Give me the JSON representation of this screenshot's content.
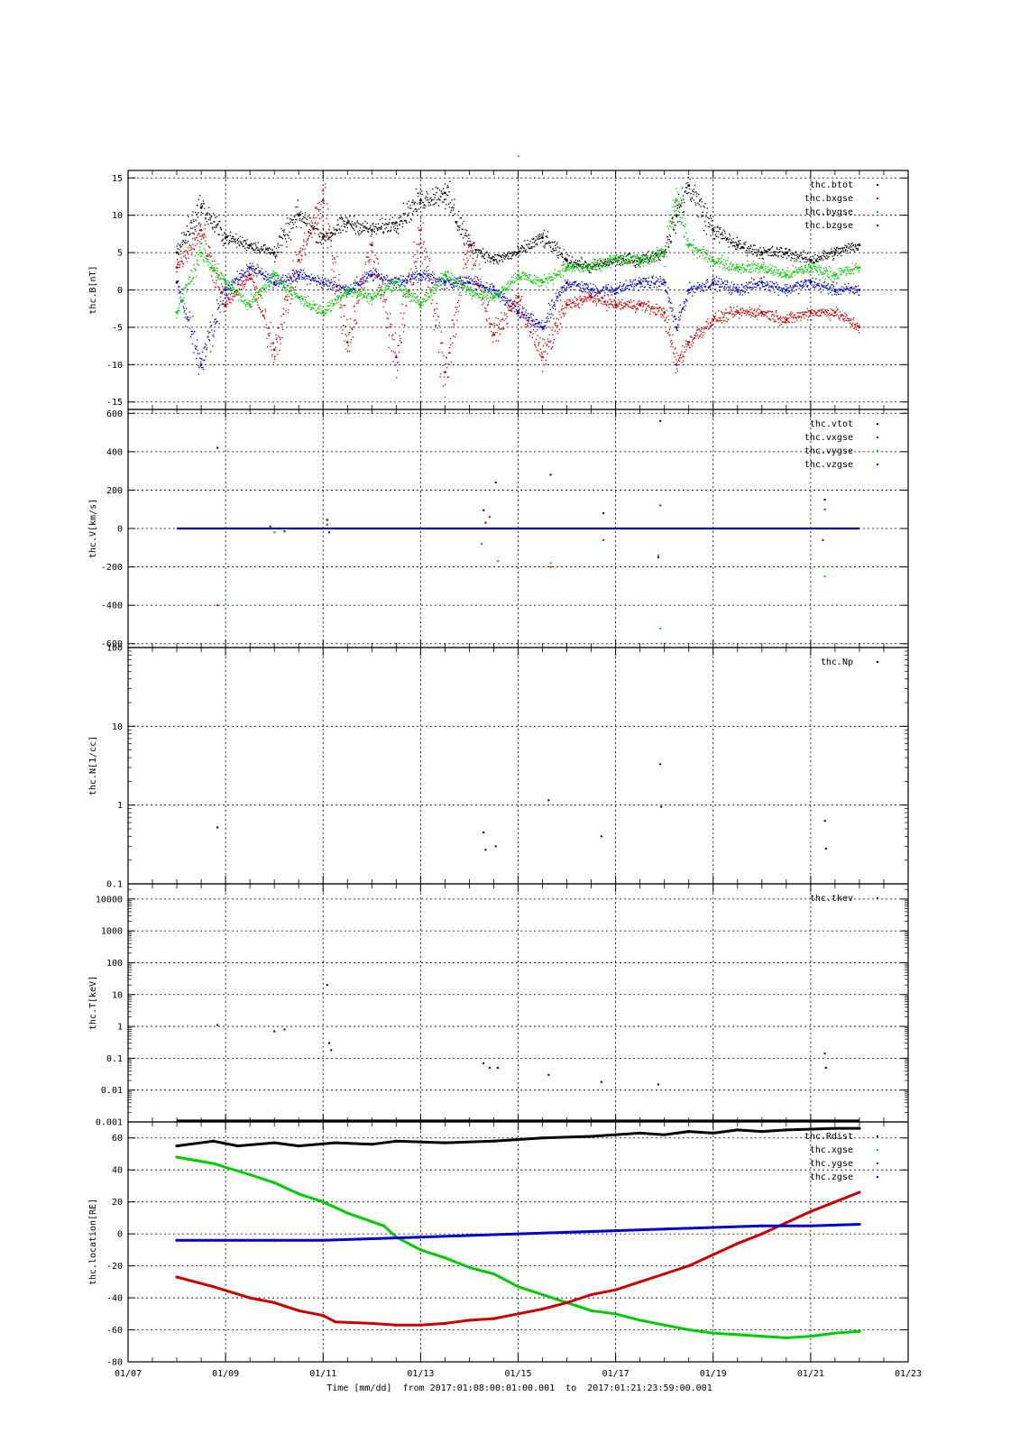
{
  "figure": {
    "title": "-",
    "xlabel": "Time [mm/dd]  from 2017:01:08:00:01:00.001  to  2017:01:21:23:59:00.001",
    "time_axis": {
      "range": [
        "2017-01-07",
        "2017-01-23"
      ],
      "tick_labels": [
        "01/07",
        "01/09",
        "01/11",
        "01/13",
        "01/15",
        "01/17",
        "01/19",
        "01/21",
        "01/23"
      ]
    }
  },
  "colors": {
    "black": "#000000",
    "red": "#cc0000",
    "green": "#00cc00",
    "blue": "#0000cc",
    "grid": "#000000"
  },
  "chart_data": [
    {
      "type": "scatter",
      "ylabel": "thc.B[nT]",
      "ylim": [
        -16,
        16
      ],
      "yscale": "linear",
      "yticks": [
        -15,
        -10,
        -5,
        0,
        5,
        10,
        15
      ],
      "ytick_labels": [
        "-15",
        "-10",
        "-5",
        "0",
        "5",
        "10",
        "15"
      ],
      "legend": "top-right",
      "grid": true,
      "series": [
        {
          "name": "thc.btot",
          "color": "black",
          "x": [
            "2017-01-08 00:00",
            "2017-01-08 12:00",
            "2017-01-09 00:00",
            "2017-01-09 12:00",
            "2017-01-10 00:00",
            "2017-01-10 12:00",
            "2017-01-11 00:00",
            "2017-01-11 12:00",
            "2017-01-12 00:00",
            "2017-01-12 12:00",
            "2017-01-13 00:00",
            "2017-01-13 12:00",
            "2017-01-14 00:00",
            "2017-01-14 12:00",
            "2017-01-15 00:00",
            "2017-01-15 12:00",
            "2017-01-16 00:00",
            "2017-01-16 12:00",
            "2017-01-17 00:00",
            "2017-01-17 12:00",
            "2017-01-18 00:00",
            "2017-01-18 06:00",
            "2017-01-18 12:00",
            "2017-01-19 00:00",
            "2017-01-19 12:00",
            "2017-01-20 00:00",
            "2017-01-20 12:00",
            "2017-01-21 00:00",
            "2017-01-21 12:00",
            "2017-01-22 00:00"
          ],
          "y": [
            5,
            11,
            7,
            6,
            5,
            10,
            7,
            9,
            8,
            9,
            12,
            13,
            6,
            4,
            5,
            7,
            4,
            3,
            4,
            4,
            5,
            10,
            14,
            8,
            6,
            5,
            5,
            4,
            5,
            6
          ]
        },
        {
          "name": "thc.bxgse",
          "color": "red",
          "x": [
            "2017-01-08 00:00",
            "2017-01-08 12:00",
            "2017-01-09 00:00",
            "2017-01-09 12:00",
            "2017-01-10 00:00",
            "2017-01-10 12:00",
            "2017-01-11 00:00",
            "2017-01-11 12:00",
            "2017-01-12 00:00",
            "2017-01-12 12:00",
            "2017-01-13 00:00",
            "2017-01-13 12:00",
            "2017-01-14 00:00",
            "2017-01-14 12:00",
            "2017-01-15 00:00",
            "2017-01-15 12:00",
            "2017-01-16 00:00",
            "2017-01-16 12:00",
            "2017-01-17 00:00",
            "2017-01-17 12:00",
            "2017-01-18 00:00",
            "2017-01-18 06:00",
            "2017-01-18 12:00",
            "2017-01-19 00:00",
            "2017-01-19 12:00",
            "2017-01-20 00:00",
            "2017-01-20 12:00",
            "2017-01-21 00:00",
            "2017-01-21 12:00",
            "2017-01-22 00:00"
          ],
          "y": [
            3,
            8,
            -2,
            2,
            -8,
            4,
            12,
            -7,
            6,
            -9,
            8,
            -11,
            6,
            -6,
            -1,
            -9,
            -2,
            -1,
            -2,
            -2,
            -3,
            -10,
            -7,
            -4,
            -3,
            -3,
            -4,
            -3,
            -3,
            -5
          ]
        },
        {
          "name": "thc.bygse",
          "color": "green",
          "x": [
            "2017-01-08 00:00",
            "2017-01-08 12:00",
            "2017-01-09 00:00",
            "2017-01-09 12:00",
            "2017-01-10 00:00",
            "2017-01-10 12:00",
            "2017-01-11 00:00",
            "2017-01-11 12:00",
            "2017-01-12 00:00",
            "2017-01-12 12:00",
            "2017-01-13 00:00",
            "2017-01-13 12:00",
            "2017-01-14 00:00",
            "2017-01-14 12:00",
            "2017-01-15 00:00",
            "2017-01-15 12:00",
            "2017-01-16 00:00",
            "2017-01-16 12:00",
            "2017-01-17 00:00",
            "2017-01-17 12:00",
            "2017-01-18 00:00",
            "2017-01-18 06:00",
            "2017-01-18 12:00",
            "2017-01-19 00:00",
            "2017-01-19 12:00",
            "2017-01-20 00:00",
            "2017-01-20 12:00",
            "2017-01-21 00:00",
            "2017-01-21 12:00",
            "2017-01-22 00:00"
          ],
          "y": [
            -3,
            5,
            1,
            -2,
            2,
            -1,
            -3,
            0,
            -1,
            1,
            -2,
            2,
            0,
            -1,
            2,
            1,
            3,
            3,
            4,
            4,
            5,
            12,
            6,
            4,
            3,
            3,
            2,
            3,
            2,
            3
          ]
        },
        {
          "name": "thc.bzgse",
          "color": "blue",
          "x": [
            "2017-01-08 00:00",
            "2017-01-08 12:00",
            "2017-01-09 00:00",
            "2017-01-09 12:00",
            "2017-01-10 00:00",
            "2017-01-10 12:00",
            "2017-01-11 00:00",
            "2017-01-11 12:00",
            "2017-01-12 00:00",
            "2017-01-12 12:00",
            "2017-01-13 00:00",
            "2017-01-13 12:00",
            "2017-01-14 00:00",
            "2017-01-14 12:00",
            "2017-01-15 00:00",
            "2017-01-15 12:00",
            "2017-01-16 00:00",
            "2017-01-16 12:00",
            "2017-01-17 00:00",
            "2017-01-17 12:00",
            "2017-01-18 00:00",
            "2017-01-18 06:00",
            "2017-01-18 12:00",
            "2017-01-19 00:00",
            "2017-01-19 12:00",
            "2017-01-20 00:00",
            "2017-01-20 12:00",
            "2017-01-21 00:00",
            "2017-01-21 12:00",
            "2017-01-22 00:00"
          ],
          "y": [
            1,
            -10,
            0,
            3,
            1,
            2,
            1,
            0,
            2,
            1,
            2,
            1,
            1,
            0,
            -3,
            -5,
            1,
            0,
            0,
            1,
            1,
            -5,
            0,
            1,
            0,
            1,
            0,
            1,
            0,
            0
          ]
        }
      ]
    },
    {
      "type": "scatter",
      "ylabel": "thc.V[km/s]",
      "ylim": [
        -620,
        620
      ],
      "yscale": "linear",
      "yticks": [
        -600,
        -400,
        -200,
        0,
        200,
        400,
        600
      ],
      "ytick_labels": [
        "-600",
        "-400",
        "-200",
        "0",
        "200",
        "400",
        "600"
      ],
      "legend": "top-right",
      "grid": true,
      "series": [
        {
          "name": "thc.vtot",
          "color": "black",
          "x": [
            "2017-01-08 20:00",
            "2017-01-11 02:00",
            "2017-01-14 07:00",
            "2017-01-14 13:00",
            "2017-01-15 16:00",
            "2017-01-16 18:00",
            "2017-01-17 22:00",
            "2017-01-21 07:00"
          ],
          "y": [
            420,
            45,
            95,
            240,
            280,
            80,
            560,
            150
          ]
        },
        {
          "name": "thc.vxgse",
          "color": "red",
          "x": [
            "2017-01-08 20:00",
            "2017-01-11 02:00",
            "2017-01-14 10:00",
            "2017-01-15 16:00",
            "2017-01-16 18:00",
            "2017-01-17 22:00",
            "2017-01-21 07:00"
          ],
          "y": [
            -400,
            20,
            60,
            -200,
            -60,
            120,
            100
          ]
        },
        {
          "name": "thc.vygse",
          "color": "green",
          "x": [
            "2017-01-10 00:00",
            "2017-01-14 06:00",
            "2017-01-14 14:00",
            "2017-01-15 16:00",
            "2017-01-17 21:00",
            "2017-01-17 22:00",
            "2017-01-21 07:00"
          ],
          "y": [
            -20,
            -80,
            -170,
            -180,
            -140,
            -520,
            -250
          ]
        },
        {
          "name": "thc.vzgse",
          "color": "blue",
          "x": [
            "2017-01-09 22:00",
            "2017-01-10 05:00",
            "2017-01-11 03:00",
            "2017-01-14 08:00",
            "2017-01-17 21:00",
            "2017-01-21 06:00"
          ],
          "y": [
            10,
            -15,
            -20,
            30,
            -150,
            -60
          ]
        }
      ],
      "baseline": {
        "name": "thc.vzgse",
        "color": "blue",
        "x_range": [
          "2017-01-08 00:00",
          "2017-01-22 00:00"
        ],
        "y": 0
      }
    },
    {
      "type": "scatter",
      "ylabel": "thc.N[1/cc]",
      "ylim": [
        0.1,
        100
      ],
      "yscale": "log",
      "yticks": [
        0.1,
        1,
        10,
        100
      ],
      "ytick_labels": [
        "0.1",
        "1",
        "10",
        "100"
      ],
      "legend": "top-right",
      "grid": true,
      "series": [
        {
          "name": "thc.Np",
          "color": "black",
          "x": [
            "2017-01-08 20:00",
            "2017-01-14 07:00",
            "2017-01-14 08:00",
            "2017-01-14 13:00",
            "2017-01-15 15:00",
            "2017-01-16 17:00",
            "2017-01-17 22:00",
            "2017-01-17 22:30",
            "2017-01-21 07:00",
            "2017-01-21 07:30"
          ],
          "y": [
            0.52,
            0.45,
            0.27,
            0.3,
            1.15,
            0.4,
            3.3,
            0.95,
            0.63,
            0.28
          ]
        }
      ]
    },
    {
      "type": "scatter",
      "ylabel": "thc.T[keV]",
      "ylim": [
        0.001,
        30000
      ],
      "yscale": "log",
      "yticks": [
        0.001,
        0.01,
        0.1,
        1,
        10,
        100,
        1000,
        10000
      ],
      "ytick_labels": [
        "0.001",
        "0.01",
        "0.1",
        "1",
        "10",
        "100",
        "1000",
        "10000"
      ],
      "legend": "top-right",
      "grid": true,
      "series": [
        {
          "name": "thc.tkev",
          "color": "black",
          "x": [
            "2017-01-08 20:00",
            "2017-01-10 00:00",
            "2017-01-10 05:00",
            "2017-01-11 02:00",
            "2017-01-11 03:00",
            "2017-01-11 04:00",
            "2017-01-14 07:00",
            "2017-01-14 10:00",
            "2017-01-14 14:00",
            "2017-01-15 15:00",
            "2017-01-16 17:00",
            "2017-01-17 21:00",
            "2017-01-21 07:00",
            "2017-01-21 07:30"
          ],
          "y": [
            1.1,
            0.7,
            0.8,
            20,
            0.3,
            0.18,
            0.07,
            0.05,
            0.05,
            0.03,
            0.018,
            0.015,
            0.14,
            0.05
          ]
        }
      ],
      "baseline": {
        "name": "thc.tkev",
        "color": "black",
        "x_range": [
          "2017-01-08 00:00",
          "2017-01-22 00:00"
        ],
        "y": 0.001
      }
    },
    {
      "type": "line",
      "ylabel": "thc.location[RE]",
      "ylim": [
        -80,
        70
      ],
      "yscale": "linear",
      "yticks": [
        -80,
        -60,
        -40,
        -20,
        0,
        20,
        40,
        60
      ],
      "ytick_labels": [
        "-80",
        "-60",
        "-40",
        "-20",
        "0",
        "20",
        "40",
        "60"
      ],
      "legend": "top-right",
      "grid": true,
      "series": [
        {
          "name": "thc.Rdist",
          "color": "black",
          "x": [
            "2017-01-08 00:00",
            "2017-01-08 18:00",
            "2017-01-09 06:00",
            "2017-01-10 00:00",
            "2017-01-10 12:00",
            "2017-01-11 06:00",
            "2017-01-12 00:00",
            "2017-01-12 12:00",
            "2017-01-13 12:00",
            "2017-01-14 12:00",
            "2017-01-15 12:00",
            "2017-01-16 12:00",
            "2017-01-17 12:00",
            "2017-01-18 00:00",
            "2017-01-18 12:00",
            "2017-01-19 00:00",
            "2017-01-19 12:00",
            "2017-01-20 00:00",
            "2017-01-20 12:00",
            "2017-01-21 12:00",
            "2017-01-22 00:00"
          ],
          "y": [
            55,
            58,
            55,
            57,
            55,
            57,
            56,
            58,
            57,
            58,
            60,
            61,
            63,
            62,
            64,
            63,
            65,
            64,
            65,
            66,
            66
          ]
        },
        {
          "name": "thc.xgse",
          "color": "green",
          "x": [
            "2017-01-08 00:00",
            "2017-01-08 18:00",
            "2017-01-09 12:00",
            "2017-01-10 00:00",
            "2017-01-10 12:00",
            "2017-01-11 00:00",
            "2017-01-11 12:00",
            "2017-01-12 06:00",
            "2017-01-12 12:00",
            "2017-01-13 00:00",
            "2017-01-13 12:00",
            "2017-01-14 00:00",
            "2017-01-14 12:00",
            "2017-01-15 00:00",
            "2017-01-15 12:00",
            "2017-01-16 00:00",
            "2017-01-16 12:00",
            "2017-01-17 00:00",
            "2017-01-17 12:00",
            "2017-01-18 00:00",
            "2017-01-18 12:00",
            "2017-01-19 00:00",
            "2017-01-19 12:00",
            "2017-01-20 00:00",
            "2017-01-20 12:00",
            "2017-01-21 00:00",
            "2017-01-21 12:00",
            "2017-01-22 00:00"
          ],
          "y": [
            48,
            44,
            37,
            32,
            25,
            20,
            13,
            5,
            -2,
            -10,
            -15,
            -21,
            -25,
            -33,
            -38,
            -43,
            -48,
            -50,
            -54,
            -57,
            -60,
            -62,
            -63,
            -64,
            -65,
            -64,
            -62,
            -61
          ]
        },
        {
          "name": "thc.ygse",
          "color": "red",
          "x": [
            "2017-01-08 00:00",
            "2017-01-08 18:00",
            "2017-01-09 12:00",
            "2017-01-10 00:00",
            "2017-01-10 12:00",
            "2017-01-11 00:00",
            "2017-01-11 06:00",
            "2017-01-12 00:00",
            "2017-01-12 12:00",
            "2017-01-13 00:00",
            "2017-01-13 12:00",
            "2017-01-14 00:00",
            "2017-01-14 12:00",
            "2017-01-15 00:00",
            "2017-01-15 12:00",
            "2017-01-16 00:00",
            "2017-01-16 12:00",
            "2017-01-17 00:00",
            "2017-01-17 12:00",
            "2017-01-18 00:00",
            "2017-01-18 12:00",
            "2017-01-19 00:00",
            "2017-01-19 12:00",
            "2017-01-20 00:00",
            "2017-01-20 12:00",
            "2017-01-21 00:00",
            "2017-01-21 12:00",
            "2017-01-22 00:00"
          ],
          "y": [
            -27,
            -33,
            -40,
            -43,
            -48,
            -51,
            -55,
            -56,
            -57,
            -57,
            -56,
            -54,
            -53,
            -50,
            -47,
            -43,
            -38,
            -35,
            -30,
            -25,
            -20,
            -13,
            -6,
            0,
            7,
            14,
            20,
            26
          ]
        },
        {
          "name": "thc.zgse",
          "color": "blue",
          "x": [
            "2017-01-08 00:00",
            "2017-01-09 00:00",
            "2017-01-10 00:00",
            "2017-01-11 00:00",
            "2017-01-12 00:00",
            "2017-01-13 00:00",
            "2017-01-14 00:00",
            "2017-01-15 00:00",
            "2017-01-16 00:00",
            "2017-01-17 00:00",
            "2017-01-18 00:00",
            "2017-01-19 00:00",
            "2017-01-20 00:00",
            "2017-01-21 00:00",
            "2017-01-22 00:00"
          ],
          "y": [
            -4,
            -4,
            -4,
            -4,
            -3,
            -2,
            -1,
            0,
            1,
            2,
            3,
            4,
            5,
            5,
            6
          ]
        }
      ]
    }
  ]
}
